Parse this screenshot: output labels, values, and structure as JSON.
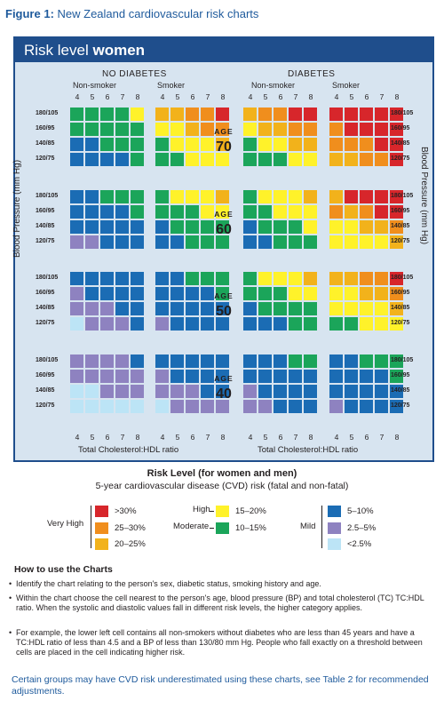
{
  "figure_title_bold": "Figure 1:",
  "figure_title_rest": " New Zealand cardiovascular risk charts",
  "panel_title_prefix": "Risk level ",
  "panel_title_bold": "women",
  "headers": {
    "no_diabetes": "NO DIABETES",
    "diabetes": "DIABETES",
    "non_smoker": "Non-smoker",
    "smoker": "Smoker"
  },
  "cholesterol_ticks": [
    "4",
    "5",
    "6",
    "7",
    "8"
  ],
  "bp_labels": [
    "180/105",
    "160/95",
    "140/85",
    "120/75"
  ],
  "age_label": "AGE",
  "ages": [
    "70",
    "60",
    "50",
    "40"
  ],
  "axis_y": "Blood Pressure (mm Hg)",
  "axis_x": "Total Cholesterol:HDL ratio",
  "colors": {
    "R": "#d7262b",
    "O": "#f08e1d",
    "A": "#f2b21b",
    "Y": "#fff22a",
    "G": "#1ba55a",
    "B": "#1b6cb4",
    "P": "#8e82c0",
    "L": "#bce4f6"
  },
  "grids": {
    "nd_ns_70": [
      "GGGGY",
      "GGGGG",
      "BBGGG",
      "BBBBG"
    ],
    "nd_s_70": [
      "AAOOR",
      "YYAOO",
      "GYYYA",
      "GGYYY"
    ],
    "d_ns_70": [
      "AOORR",
      "YAAOO",
      "GYYAA",
      "GGGYY"
    ],
    "d_s_70": [
      "RRRRR",
      "ORRRR",
      "OOORR",
      "AAOOR"
    ],
    "nd_ns_60": [
      "BBGGG",
      "BBBBG",
      "BBBBB",
      "PPBBB"
    ],
    "nd_s_60": [
      "GYYYA",
      "GGGYY",
      "BGGGG",
      "BBGGG"
    ],
    "d_ns_60": [
      "GYYYA",
      "GGYYY",
      "BGGGY",
      "BBGGG"
    ],
    "d_s_60": [
      "ARRRR",
      "OAORR",
      "YYAAO",
      "YYYYA"
    ],
    "nd_ns_50": [
      "BBBBB",
      "PBBBB",
      "PPPBB",
      "LPPPB"
    ],
    "nd_s_50": [
      "BBGGG",
      "BBBBG",
      "BBBBB",
      "PBBBB"
    ],
    "d_ns_50": [
      "GYYYA",
      "GGGYY",
      "BGGGG",
      "BBBGG"
    ],
    "d_s_50": [
      "AAOOR",
      "YYAAO",
      "YYYYA",
      "GGYYY"
    ],
    "nd_ns_40": [
      "PPPPB",
      "PPPPP",
      "LLPPP",
      "LLLLL"
    ],
    "nd_s_40": [
      "BBBBB",
      "PBBBB",
      "PPPBB",
      "LPPPP"
    ],
    "d_ns_40": [
      "BBBGG",
      "BBBBB",
      "PBBBB",
      "PPBBB"
    ],
    "d_s_40": [
      "BBGGG",
      "BBBBG",
      "BBBBB",
      "PBBBB"
    ]
  },
  "legend": {
    "title": "Risk Level (for women and men)",
    "subtitle": "5-year cardiovascular disease (CVD) risk (fatal and non-fatal)",
    "very_high": "Very High",
    "high": "High",
    "moderate": "Moderate",
    "mild": "Mild",
    "items": [
      {
        "color": "R",
        "label": ">30%"
      },
      {
        "color": "O",
        "label": "25–30%"
      },
      {
        "color": "A",
        "label": "20–25%"
      },
      {
        "color": "Y",
        "label": "15–20%"
      },
      {
        "color": "G",
        "label": "10–15%"
      },
      {
        "color": "B",
        "label": "5–10%"
      },
      {
        "color": "P",
        "label": "2.5–5%"
      },
      {
        "color": "L",
        "label": "<2.5%"
      }
    ]
  },
  "howto": {
    "title": "How to use the Charts",
    "bullets": [
      "Identify the chart relating to the person's sex, diabetic status, smoking history and age.",
      "Within the chart choose the cell nearest to the person's age, blood pressure (BP) and total cholesterol (TC) TC:HDL ratio. When the systolic and diastolic values fall in different risk levels, the higher category applies.",
      "For example, the lower left cell contains all non-smokers without diabetes who are less than 45 years and have a TC:HDL ratio of less than 4.5 and a BP of less than 130/80 mm Hg. People who fall exactly on a threshold between cells are placed in the cell indicating higher risk."
    ]
  },
  "note": "Certain groups may have CVD risk underestimated using these charts, see Table 2 for recommended adjustments."
}
